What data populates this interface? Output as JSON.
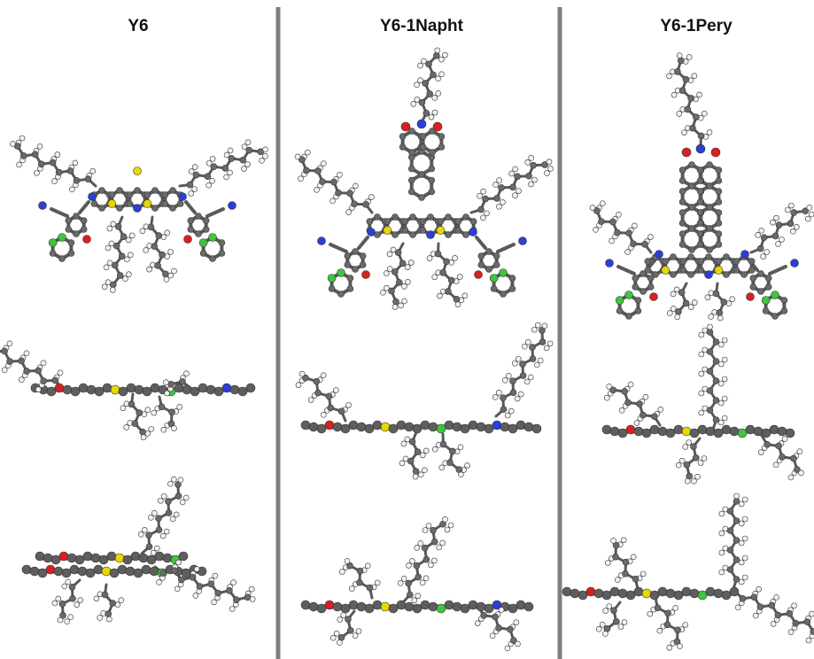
{
  "columns": [
    {
      "title": "Y6"
    },
    {
      "title": "Y6-1Napht"
    },
    {
      "title": "Y6-1Pery"
    }
  ]
}
